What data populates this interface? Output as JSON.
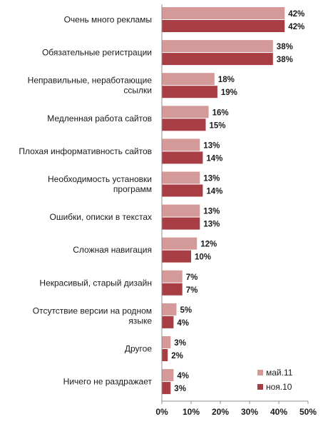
{
  "chart_data": {
    "type": "bar",
    "orientation": "horizontal",
    "title": "",
    "xlabel": "",
    "ylabel": "",
    "xlim": [
      0,
      50
    ],
    "ticks": [
      "0%",
      "10%",
      "20%",
      "30%",
      "40%",
      "50%"
    ],
    "tick_values": [
      0,
      10,
      20,
      30,
      40,
      50
    ],
    "categories": [
      [
        "Очень много рекламы"
      ],
      [
        "Обязательные регистрации"
      ],
      [
        "Неправильные, неработающие",
        "ссылки"
      ],
      [
        "Медленная работа сайтов"
      ],
      [
        "Плохая информативность сайтов"
      ],
      [
        "Необходимость установки",
        "программ"
      ],
      [
        "Ошибки, описки в текстах"
      ],
      [
        "Сложная навигация"
      ],
      [
        "Некрасивый, старый дизайн"
      ],
      [
        "Отсутствие версии на родном",
        "языке"
      ],
      [
        "Другое"
      ],
      [
        "Ничего не раздражает"
      ]
    ],
    "series": [
      {
        "name": "май.11",
        "color": "#d49a9a",
        "values": [
          42,
          38,
          18,
          16,
          13,
          13,
          13,
          12,
          7,
          5,
          3,
          4
        ]
      },
      {
        "name": "ноя.10",
        "color": "#a83e44",
        "values": [
          42,
          38,
          19,
          15,
          14,
          14,
          13,
          10,
          7,
          4,
          2,
          3
        ]
      }
    ],
    "legend_position": "bottom-right",
    "grid": false
  }
}
